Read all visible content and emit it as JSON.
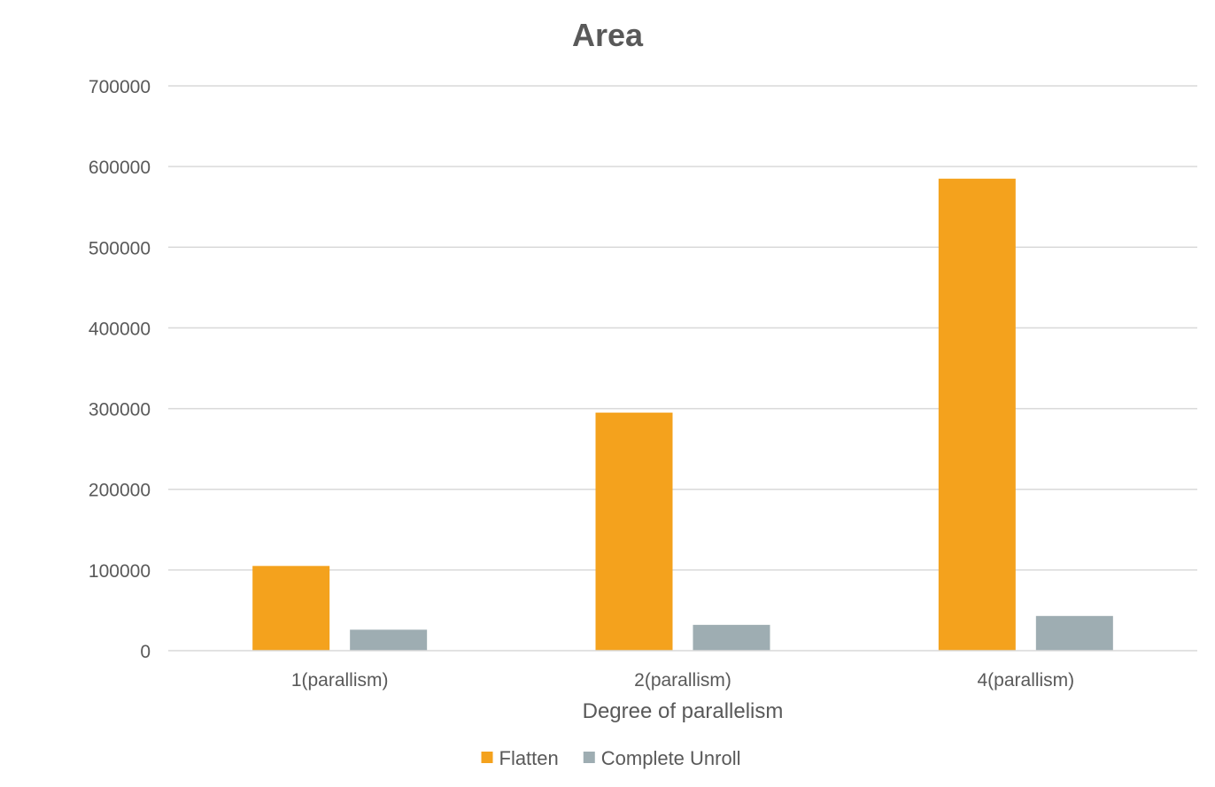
{
  "chart_data": {
    "type": "bar",
    "title": "Area",
    "xlabel": "Degree of parallelism",
    "ylabel": "",
    "categories": [
      "1(parallism)",
      "2(parallism)",
      "4(parallism)"
    ],
    "series": [
      {
        "name": "Flatten",
        "values": [
          105000,
          295000,
          585000
        ],
        "color": "#F4A21D"
      },
      {
        "name": "Complete Unroll",
        "values": [
          26000,
          32000,
          43000
        ],
        "color": "#9EADB2"
      }
    ],
    "ylim": [
      0,
      700000
    ],
    "yticks": [
      0,
      100000,
      200000,
      300000,
      400000,
      500000,
      600000,
      700000
    ],
    "ytick_labels": [
      "0",
      "100000",
      "200000",
      "300000",
      "400000",
      "500000",
      "600000",
      "700000"
    ],
    "grid": true,
    "legend": "bottom-center",
    "gridline_color": "#D9D9D9"
  }
}
